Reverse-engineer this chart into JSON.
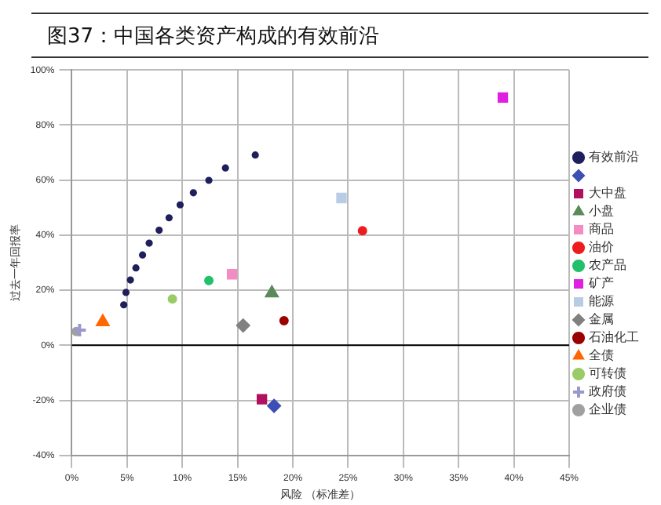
{
  "chart_data": {
    "type": "scatter",
    "title": "图37：中国各类资产构成的有效前沿",
    "xlabel": "风险 （标准差）",
    "ylabel": "过去一年回报率",
    "xlim": [
      0,
      45
    ],
    "xticks": [
      {
        "value": 0,
        "label": "0%"
      },
      {
        "value": 5,
        "label": "5%"
      },
      {
        "value": 10,
        "label": "10%"
      },
      {
        "value": 15,
        "label": "15%"
      },
      {
        "value": 20,
        "label": "20%"
      },
      {
        "value": 25,
        "label": "25%"
      },
      {
        "value": 30,
        "label": "30%"
      },
      {
        "value": 35,
        "label": "35%"
      },
      {
        "value": 40,
        "label": "40%"
      },
      {
        "value": 45,
        "label": "45%"
      }
    ],
    "ylim": [
      -40,
      100
    ],
    "yticks": [
      {
        "value": -40,
        "label": "-40%"
      },
      {
        "value": -20,
        "label": "-20%"
      },
      {
        "value": 0,
        "label": "0%"
      },
      {
        "value": 20,
        "label": "20%"
      },
      {
        "value": 40,
        "label": "40%"
      },
      {
        "value": 60,
        "label": "60%"
      },
      {
        "value": 80,
        "label": "80%"
      },
      {
        "value": 100,
        "label": "100%"
      }
    ],
    "grid": true,
    "legend": "right",
    "ref_lines": [
      {
        "axis": "y",
        "value": 0,
        "color": "#000000"
      }
    ],
    "series": [
      {
        "name": "有效前沿",
        "color": "#1f1f5c",
        "marker": "circle",
        "x": [
          4.7,
          4.9,
          5.3,
          5.8,
          6.4,
          7.0,
          7.9,
          8.8,
          9.8,
          11.0,
          12.4,
          13.9,
          16.6
        ],
        "values": [
          14.7,
          19.2,
          23.7,
          28.1,
          32.8,
          37.1,
          41.8,
          46.3,
          51.0,
          55.4,
          59.9,
          64.4,
          69.1
        ]
      },
      {
        "color": "#3c4fb4",
        "marker": "diamond",
        "x": [
          18.3
        ],
        "values": [
          -22.0
        ]
      },
      {
        "name": "大中盘",
        "color": "#b0105e",
        "marker": "square",
        "x": [
          17.2
        ],
        "values": [
          -19.6
        ]
      },
      {
        "name": "小盘",
        "color": "#5a8a5a",
        "marker": "triangle",
        "x": [
          18.1
        ],
        "values": [
          19.0
        ]
      },
      {
        "name": "商品",
        "color": "#f48cc4",
        "marker": "square",
        "x": [
          14.5
        ],
        "values": [
          25.8
        ]
      },
      {
        "name": "油价",
        "color": "#ee1c1c",
        "marker": "circle",
        "x": [
          26.3
        ],
        "values": [
          41.6
        ]
      },
      {
        "name": "农产品",
        "color": "#22c06a",
        "marker": "circle",
        "x": [
          12.4
        ],
        "values": [
          23.5
        ]
      },
      {
        "name": "矿产",
        "color": "#e020e0",
        "marker": "square",
        "x": [
          39.0
        ],
        "values": [
          90.0
        ]
      },
      {
        "name": "能源",
        "color": "#b8cce4",
        "marker": "square",
        "x": [
          24.4
        ],
        "values": [
          53.5
        ]
      },
      {
        "name": "金属",
        "color": "#808080",
        "marker": "diamond",
        "x": [
          15.5
        ],
        "values": [
          7.2
        ]
      },
      {
        "name": "石油化工",
        "color": "#9a0000",
        "marker": "circle",
        "x": [
          19.2
        ],
        "values": [
          8.9
        ]
      },
      {
        "name": "全债",
        "color": "#ff6600",
        "marker": "triangle",
        "x": [
          2.8
        ],
        "values": [
          8.5
        ]
      },
      {
        "name": "可转债",
        "color": "#99cc66",
        "marker": "circle",
        "x": [
          9.1
        ],
        "values": [
          16.8
        ]
      },
      {
        "name": "政府债",
        "color": "#9999cc",
        "marker": "cross",
        "x": [
          0.7
        ],
        "values": [
          5.5
        ]
      },
      {
        "name": "企业债",
        "color": "#a0a0a0",
        "marker": "circle",
        "x": [
          0.4
        ],
        "values": [
          5.0
        ]
      }
    ]
  }
}
